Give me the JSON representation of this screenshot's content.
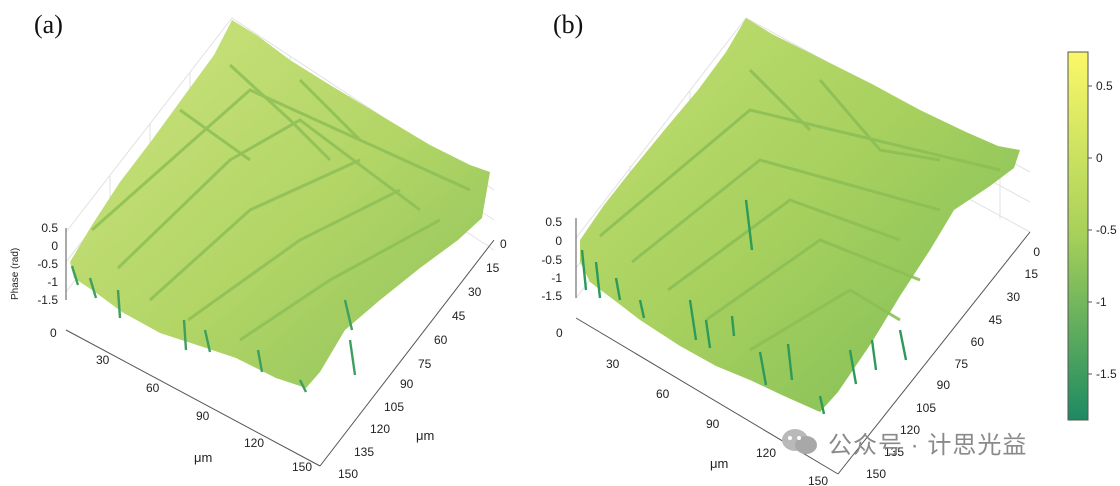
{
  "panels": [
    {
      "label": "(a)",
      "z_label": "Phase (rad)",
      "z_ticks": [
        "0.5",
        "0",
        "-0.5",
        "-1",
        "-1.5"
      ],
      "x_label": "μm",
      "x_ticks": [
        "0",
        "30",
        "60",
        "90",
        "120",
        "150"
      ],
      "y_label": "μm",
      "y_ticks": [
        "0",
        "15",
        "30",
        "45",
        "60",
        "75",
        "90",
        "105",
        "120",
        "135",
        "150"
      ]
    },
    {
      "label": "(b)",
      "z_label": "",
      "z_ticks": [
        "0.5",
        "0",
        "-0.5",
        "-1",
        "-1.5"
      ],
      "x_label": "μm",
      "x_ticks": [
        "0",
        "30",
        "60",
        "90",
        "120",
        "150"
      ],
      "y_label": "μm",
      "y_ticks": [
        "0",
        "15",
        "30",
        "45",
        "60",
        "75",
        "90",
        "105",
        "120",
        "135",
        "150"
      ]
    }
  ],
  "colorbar": {
    "ticks": [
      "0.5",
      "0",
      "-0.5",
      "-1",
      "-1.5"
    ],
    "colors": {
      "top": "#fbf868",
      "mid": "#a6d05a",
      "bottom": "#1d8a62"
    }
  },
  "watermark": {
    "text": "公众号 · 计思光益"
  },
  "colors": {
    "surface_light": "#c6e07a",
    "surface_mid": "#a8d160",
    "surface_dark": "#2f9a5c",
    "grid": "#e3e3e3"
  }
}
